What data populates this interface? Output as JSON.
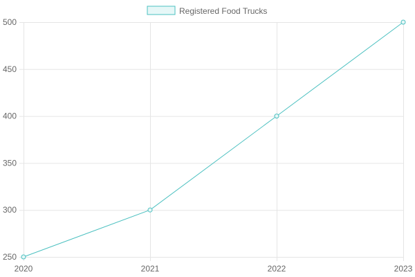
{
  "chart_data": {
    "type": "line",
    "x": [
      "2020",
      "2021",
      "2022",
      "2023"
    ],
    "series": [
      {
        "name": "Registered Food Trucks",
        "values": [
          250,
          300,
          400,
          500
        ],
        "color": "#4bc0c0",
        "fill_color": "#e6f7f7"
      }
    ],
    "ylim": [
      250,
      500
    ],
    "yticks": [
      250,
      300,
      350,
      400,
      450,
      500
    ],
    "grid": true,
    "legend_position": "top-center"
  },
  "colors": {
    "grid": "#e5e5e5",
    "tick_text": "#666666"
  }
}
